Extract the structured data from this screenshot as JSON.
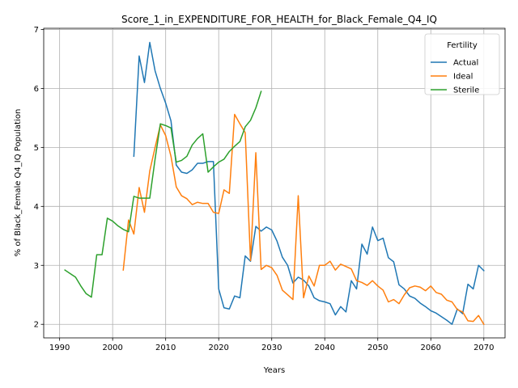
{
  "chart_data": {
    "type": "line",
    "title": "Score_1_in_EXPENDITURE_FOR_HEALTH_for_Black_Female_Q4_IQ",
    "xlabel": "Years",
    "ylabel": "% of Black_Female Q4_IQ Population",
    "xlim": [
      1987,
      2074
    ],
    "ylim": [
      1.77,
      7.02
    ],
    "xticks": [
      1990,
      2000,
      2010,
      2020,
      2030,
      2040,
      2050,
      2060,
      2070
    ],
    "yticks": [
      2,
      3,
      4,
      5,
      6,
      7
    ],
    "grid": true,
    "legend": {
      "title": "Fertility",
      "placement": "top-right"
    },
    "series": [
      {
        "name": "Actual",
        "color": "#1f77b4",
        "x": [
          2004,
          2005,
          2006,
          2007,
          2008,
          2009,
          2010,
          2011,
          2012,
          2013,
          2014,
          2015,
          2016,
          2017,
          2018,
          2019,
          2020,
          2021,
          2022,
          2023,
          2024,
          2025,
          2026,
          2027,
          2028,
          2029,
          2030,
          2031,
          2032,
          2033,
          2034,
          2035,
          2036,
          2037,
          2038,
          2039,
          2040,
          2041,
          2042,
          2043,
          2044,
          2045,
          2046,
          2047,
          2048,
          2049,
          2050,
          2051,
          2052,
          2053,
          2054,
          2055,
          2056,
          2057,
          2058,
          2059,
          2060,
          2061,
          2062,
          2063,
          2064,
          2065,
          2066,
          2067,
          2068,
          2069,
          2070
        ],
        "y": [
          4.85,
          6.55,
          6.1,
          6.78,
          6.3,
          6.0,
          5.75,
          5.45,
          4.7,
          4.58,
          4.56,
          4.62,
          4.73,
          4.73,
          4.76,
          4.76,
          2.6,
          2.28,
          2.26,
          2.48,
          2.45,
          3.16,
          3.07,
          3.66,
          3.58,
          3.65,
          3.6,
          3.41,
          3.14,
          3.0,
          2.7,
          2.8,
          2.75,
          2.65,
          2.45,
          2.4,
          2.38,
          2.35,
          2.16,
          2.3,
          2.21,
          2.74,
          2.6,
          3.36,
          3.19,
          3.65,
          3.42,
          3.46,
          3.13,
          3.06,
          2.67,
          2.6,
          2.48,
          2.44,
          2.36,
          2.3,
          2.23,
          2.19,
          2.13,
          2.07,
          2.0,
          2.26,
          2.18,
          2.68,
          2.6,
          3.0,
          2.91
        ]
      },
      {
        "name": "Ideal",
        "color": "#ff7f0e",
        "x": [
          2002,
          2003,
          2004,
          2005,
          2006,
          2007,
          2008,
          2009,
          2010,
          2011,
          2012,
          2013,
          2014,
          2015,
          2016,
          2017,
          2018,
          2019,
          2020,
          2021,
          2022,
          2023,
          2024,
          2025,
          2026,
          2027,
          2028,
          2029,
          2030,
          2031,
          2032,
          2033,
          2034,
          2035,
          2036,
          2037,
          2038,
          2039,
          2040,
          2041,
          2042,
          2043,
          2044,
          2045,
          2046,
          2047,
          2048,
          2049,
          2050,
          2051,
          2052,
          2053,
          2054,
          2055,
          2056,
          2057,
          2058,
          2059,
          2060,
          2061,
          2062,
          2063,
          2064,
          2065,
          2066,
          2067,
          2068,
          2069,
          2070
        ],
        "y": [
          2.92,
          3.77,
          3.53,
          4.32,
          3.9,
          4.6,
          5.0,
          5.38,
          5.2,
          4.85,
          4.33,
          4.18,
          4.13,
          4.03,
          4.07,
          4.05,
          4.05,
          3.9,
          3.88,
          4.28,
          4.22,
          5.56,
          5.4,
          5.25,
          3.08,
          4.91,
          2.93,
          3.0,
          2.96,
          2.83,
          2.58,
          2.5,
          2.42,
          4.18,
          2.45,
          2.82,
          2.65,
          3.0,
          3.0,
          3.07,
          2.92,
          3.02,
          2.98,
          2.94,
          2.74,
          2.71,
          2.66,
          2.74,
          2.65,
          2.58,
          2.38,
          2.42,
          2.35,
          2.5,
          2.62,
          2.65,
          2.63,
          2.57,
          2.65,
          2.54,
          2.51,
          2.41,
          2.38,
          2.25,
          2.21,
          2.06,
          2.05,
          2.15,
          2.0
        ]
      },
      {
        "name": "Sterile",
        "color": "#2ca02c",
        "x": [
          1991,
          1992,
          1993,
          1994,
          1995,
          1996,
          1997,
          1998,
          1999,
          2000,
          2001,
          2002,
          2003,
          2004,
          2005,
          2006,
          2007,
          2008,
          2009,
          2010,
          2011,
          2012,
          2013,
          2014,
          2015,
          2016,
          2017,
          2018,
          2019,
          2020,
          2021,
          2022,
          2023,
          2024,
          2025,
          2026,
          2027,
          2028
        ],
        "y": [
          2.92,
          2.86,
          2.8,
          2.65,
          2.52,
          2.46,
          3.18,
          3.18,
          3.8,
          3.75,
          3.67,
          3.61,
          3.57,
          4.17,
          4.14,
          4.14,
          4.14,
          4.8,
          5.4,
          5.37,
          5.33,
          4.75,
          4.78,
          4.85,
          5.04,
          5.15,
          5.23,
          4.58,
          4.67,
          4.75,
          4.8,
          4.93,
          5.02,
          5.1,
          5.35,
          5.46,
          5.67,
          5.95
        ]
      }
    ]
  }
}
